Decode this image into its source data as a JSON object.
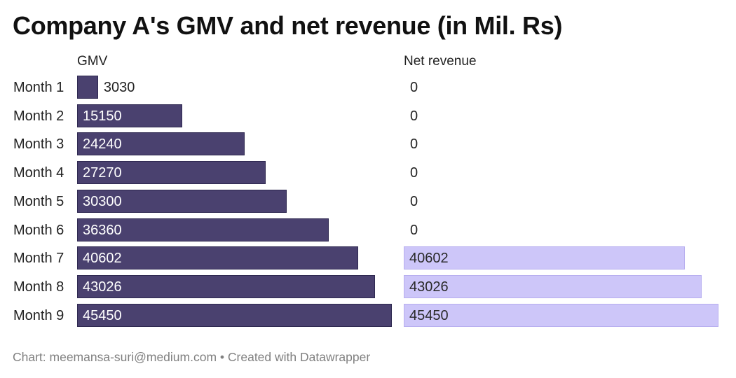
{
  "title": "Company A's GMV and net revenue (in Mil. Rs)",
  "footer": "Chart: meemansa-suri@medium.com • Created with Datawrapper",
  "colors": {
    "gmv_bar": "#4a416f",
    "net_bar": "#cdc6f9",
    "gmv_text": "#ffffff",
    "net_text": "#2a2a2a",
    "footer": "#808080"
  },
  "chart_data": {
    "type": "bar",
    "orientation": "horizontal",
    "layout": "split-bars",
    "title": "Company A's GMV and net revenue (in Mil. Rs)",
    "categories": [
      "Month 1",
      "Month 2",
      "Month 3",
      "Month 4",
      "Month 5",
      "Month 6",
      "Month 7",
      "Month 8",
      "Month 9"
    ],
    "series": [
      {
        "name": "GMV",
        "values": [
          3030,
          15150,
          24240,
          27270,
          30300,
          36360,
          40602,
          43026,
          45450
        ]
      },
      {
        "name": "Net revenue",
        "values": [
          0,
          0,
          0,
          0,
          0,
          0,
          40602,
          43026,
          45450
        ]
      }
    ],
    "xlim": [
      0,
      45450
    ],
    "grid": false,
    "legend": "column headers above each bar group"
  }
}
